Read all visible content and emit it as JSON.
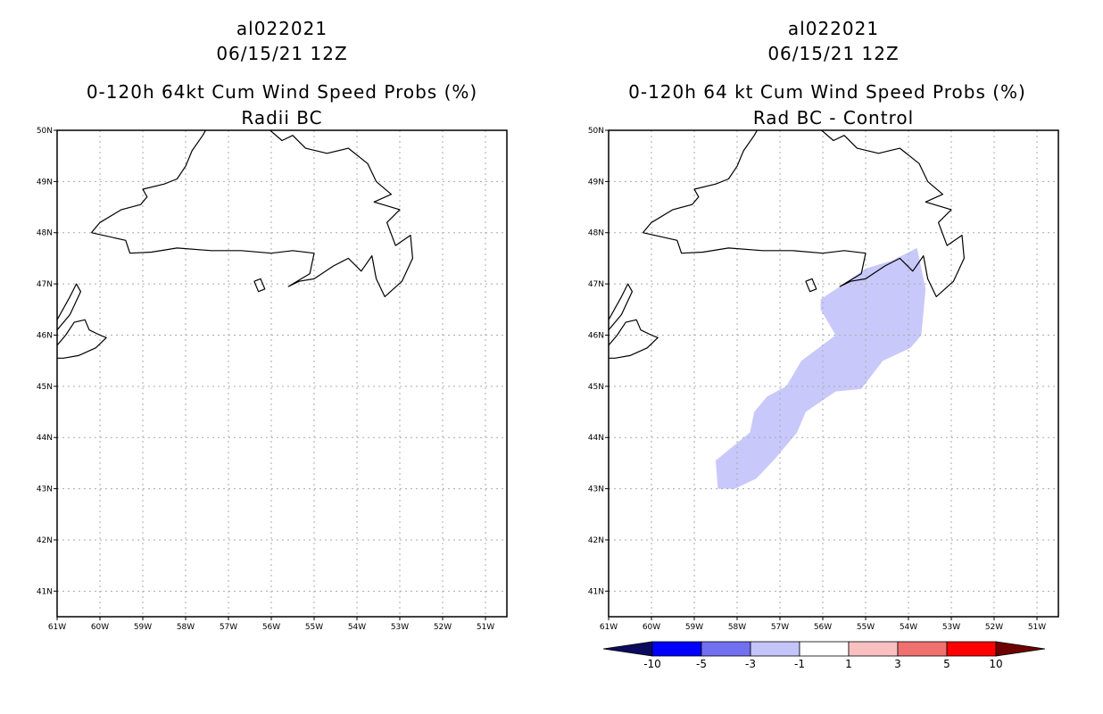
{
  "left_panel": {
    "storm_id": "al022021",
    "datetime": "06/15/21 12Z",
    "title": "0-120h 64kt Cum Wind Speed Probs (%)",
    "subtitle": "Radii BC"
  },
  "right_panel": {
    "storm_id": "al022021",
    "datetime": "06/15/21 12Z",
    "title": "0-120h 64 kt Cum Wind Speed Probs (%)",
    "subtitle": "Rad BC - Control"
  },
  "map": {
    "lat_ticks": [
      "41N",
      "42N",
      "43N",
      "44N",
      "45N",
      "46N",
      "47N",
      "48N",
      "49N",
      "50N"
    ],
    "lon_ticks": [
      "61W",
      "60W",
      "59W",
      "58W",
      "57W",
      "56W",
      "55W",
      "54W",
      "53W",
      "52W",
      "51W"
    ],
    "lat_range": [
      40.5,
      50
    ],
    "lon_range": [
      -61,
      -50.5
    ]
  },
  "colorbar": {
    "labels": [
      "-10",
      "-5",
      "-3",
      "-1",
      "1",
      "3",
      "5",
      "10"
    ],
    "colors": [
      "#0b0b5e",
      "#0000ff",
      "#7070f0",
      "#c4c4f8",
      "#ffffff",
      "#f8c0c0",
      "#f07070",
      "#ff0000",
      "#6e0000"
    ]
  },
  "shaded_region": {
    "color": "#c8c8fa",
    "category": "-3 to -1",
    "polygon_lonlat": [
      [
        -58.45,
        43.0
      ],
      [
        -58.05,
        43.0
      ],
      [
        -57.55,
        43.2
      ],
      [
        -57.1,
        43.6
      ],
      [
        -56.6,
        44.1
      ],
      [
        -56.4,
        44.5
      ],
      [
        -55.7,
        44.9
      ],
      [
        -55.1,
        44.95
      ],
      [
        -54.6,
        45.5
      ],
      [
        -53.95,
        45.75
      ],
      [
        -53.7,
        46.0
      ],
      [
        -53.6,
        46.9
      ],
      [
        -53.8,
        47.7
      ],
      [
        -54.4,
        47.45
      ],
      [
        -55.0,
        47.3
      ],
      [
        -55.6,
        46.95
      ],
      [
        -56.05,
        46.7
      ],
      [
        -56.05,
        46.5
      ],
      [
        -55.7,
        46.0
      ],
      [
        -56.5,
        45.5
      ],
      [
        -56.85,
        45.0
      ],
      [
        -57.3,
        44.8
      ],
      [
        -57.6,
        44.5
      ],
      [
        -57.7,
        44.1
      ],
      [
        -58.5,
        43.55
      ]
    ]
  },
  "coastlines": {
    "newfoundland_main": [
      [
        -60.2,
        48.0
      ],
      [
        -60.0,
        48.2
      ],
      [
        -59.5,
        48.45
      ],
      [
        -59.05,
        48.55
      ],
      [
        -58.9,
        48.7
      ],
      [
        -59.0,
        48.85
      ],
      [
        -58.5,
        48.95
      ],
      [
        -58.2,
        49.05
      ],
      [
        -58.0,
        49.3
      ],
      [
        -57.85,
        49.6
      ],
      [
        -57.6,
        49.9
      ],
      [
        -57.4,
        50.2
      ],
      [
        -56.5,
        50.2
      ],
      [
        -56.1,
        50.05
      ],
      [
        -55.75,
        49.8
      ],
      [
        -55.5,
        49.9
      ],
      [
        -55.2,
        49.65
      ],
      [
        -54.7,
        49.55
      ],
      [
        -54.2,
        49.65
      ],
      [
        -53.75,
        49.35
      ],
      [
        -53.55,
        49.0
      ],
      [
        -53.2,
        48.75
      ],
      [
        -53.6,
        48.6
      ],
      [
        -53.0,
        48.45
      ],
      [
        -53.3,
        48.2
      ],
      [
        -53.1,
        47.75
      ],
      [
        -52.75,
        47.95
      ],
      [
        -52.7,
        47.5
      ],
      [
        -52.95,
        47.05
      ],
      [
        -53.35,
        46.75
      ],
      [
        -53.55,
        47.1
      ],
      [
        -53.65,
        47.55
      ],
      [
        -53.9,
        47.25
      ],
      [
        -54.2,
        47.5
      ],
      [
        -54.55,
        47.35
      ],
      [
        -55.0,
        47.1
      ],
      [
        -55.35,
        47.05
      ],
      [
        -55.6,
        46.95
      ],
      [
        -55.1,
        47.2
      ],
      [
        -55.0,
        47.6
      ],
      [
        -55.5,
        47.65
      ],
      [
        -56.0,
        47.6
      ],
      [
        -56.7,
        47.65
      ],
      [
        -57.4,
        47.65
      ],
      [
        -58.2,
        47.7
      ],
      [
        -58.8,
        47.62
      ],
      [
        -59.3,
        47.6
      ],
      [
        -59.4,
        47.85
      ],
      [
        -60.2,
        48.0
      ]
    ],
    "cape_breton": [
      [
        -61.0,
        45.8
      ],
      [
        -60.8,
        46.0
      ],
      [
        -60.6,
        46.25
      ],
      [
        -60.35,
        46.3
      ],
      [
        -60.25,
        46.1
      ],
      [
        -60.0,
        46.0
      ],
      [
        -59.85,
        45.95
      ],
      [
        -60.1,
        45.75
      ],
      [
        -60.5,
        45.6
      ],
      [
        -60.85,
        45.55
      ],
      [
        -61.0,
        45.55
      ]
    ],
    "nova_scotia_tip": [
      [
        -61.0,
        46.3
      ],
      [
        -60.7,
        46.75
      ],
      [
        -60.55,
        47.0
      ],
      [
        -60.45,
        46.85
      ],
      [
        -60.7,
        46.4
      ],
      [
        -61.0,
        46.1
      ]
    ],
    "saint_pierre": [
      [
        -56.4,
        47.05
      ],
      [
        -56.3,
        46.85
      ],
      [
        -56.15,
        46.9
      ],
      [
        -56.25,
        47.1
      ],
      [
        -56.4,
        47.05
      ]
    ]
  }
}
